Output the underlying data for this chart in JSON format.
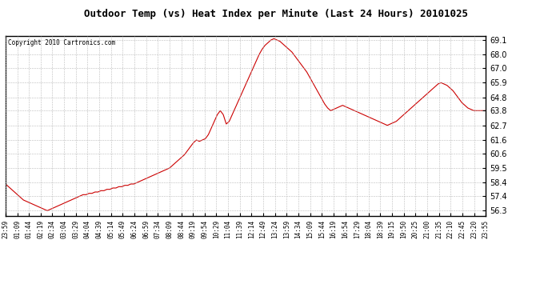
{
  "title": "Outdoor Temp (vs) Heat Index per Minute (Last 24 Hours) 20101025",
  "copyright": "Copyright 2010 Cartronics.com",
  "line_color": "#cc0000",
  "bg_color": "#ffffff",
  "plot_bg_color": "#ffffff",
  "grid_color": "#bbbbbb",
  "yticks": [
    56.3,
    57.4,
    58.4,
    59.5,
    60.6,
    61.6,
    62.7,
    63.8,
    64.8,
    65.9,
    67.0,
    68.0,
    69.1
  ],
  "ylim": [
    55.9,
    69.4
  ],
  "xtick_labels": [
    "23:59",
    "01:09",
    "01:44",
    "02:19",
    "02:34",
    "03:04",
    "03:29",
    "04:04",
    "04:39",
    "05:14",
    "05:49",
    "06:24",
    "06:59",
    "07:34",
    "08:09",
    "08:44",
    "09:19",
    "09:54",
    "10:29",
    "11:04",
    "11:39",
    "12:14",
    "12:49",
    "13:24",
    "13:59",
    "14:34",
    "15:09",
    "15:44",
    "16:19",
    "16:54",
    "17:29",
    "18:04",
    "18:39",
    "19:15",
    "19:50",
    "20:25",
    "21:00",
    "21:35",
    "22:10",
    "22:45",
    "23:20",
    "23:55"
  ],
  "y_values": [
    58.3,
    58.1,
    57.9,
    57.7,
    57.5,
    57.3,
    57.1,
    57.0,
    56.9,
    56.8,
    56.7,
    56.6,
    56.5,
    56.4,
    56.3,
    56.4,
    56.5,
    56.6,
    56.7,
    56.8,
    56.9,
    57.0,
    57.1,
    57.2,
    57.3,
    57.4,
    57.5,
    57.5,
    57.6,
    57.6,
    57.7,
    57.7,
    57.8,
    57.8,
    57.9,
    57.9,
    58.0,
    58.0,
    58.1,
    58.1,
    58.2,
    58.2,
    58.3,
    58.3,
    58.4,
    58.5,
    58.6,
    58.7,
    58.8,
    58.9,
    59.0,
    59.1,
    59.2,
    59.3,
    59.4,
    59.5,
    59.7,
    59.9,
    60.1,
    60.3,
    60.5,
    60.8,
    61.1,
    61.4,
    61.6,
    61.5,
    61.6,
    61.7,
    62.0,
    62.5,
    63.0,
    63.5,
    63.8,
    63.5,
    62.8,
    63.0,
    63.5,
    64.0,
    64.5,
    65.0,
    65.5,
    66.0,
    66.5,
    67.0,
    67.5,
    68.0,
    68.4,
    68.7,
    68.9,
    69.1,
    69.2,
    69.1,
    69.0,
    68.8,
    68.6,
    68.4,
    68.2,
    67.9,
    67.6,
    67.3,
    67.0,
    66.7,
    66.3,
    65.9,
    65.5,
    65.1,
    64.7,
    64.3,
    64.0,
    63.8,
    63.9,
    64.0,
    64.1,
    64.2,
    64.1,
    64.0,
    63.9,
    63.8,
    63.7,
    63.6,
    63.5,
    63.4,
    63.3,
    63.2,
    63.1,
    63.0,
    62.9,
    62.8,
    62.7,
    62.8,
    62.9,
    63.0,
    63.2,
    63.4,
    63.6,
    63.8,
    64.0,
    64.2,
    64.4,
    64.6,
    64.8,
    65.0,
    65.2,
    65.4,
    65.6,
    65.8,
    65.9,
    65.8,
    65.7,
    65.5,
    65.3,
    65.0,
    64.7,
    64.4,
    64.2,
    64.0,
    63.9,
    63.8,
    63.8,
    63.8,
    63.8,
    63.8
  ]
}
